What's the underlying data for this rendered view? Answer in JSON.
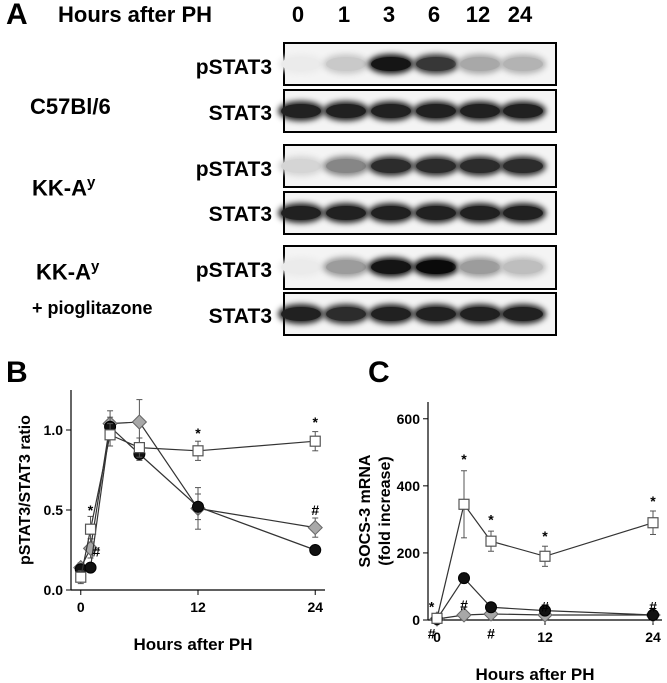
{
  "panel_a": {
    "letter": "A",
    "header_label": "Hours after PH",
    "lanes": [
      "0",
      "1",
      "3",
      "6",
      "12",
      "24"
    ],
    "groups": [
      {
        "name": "C57Bl/6",
        "name_base": "C57Bl/6",
        "name_sup": "",
        "subtitle": "",
        "blots": [
          {
            "label": "pSTAT3",
            "band_intensity": [
              0.0,
              0.15,
              0.95,
              0.8,
              0.3,
              0.25
            ]
          },
          {
            "label": "STAT3",
            "band_intensity": [
              0.9,
              0.9,
              0.9,
              0.9,
              0.9,
              0.9
            ]
          }
        ]
      },
      {
        "name": "KK-Ay",
        "name_base": "KK-A",
        "name_sup": "y",
        "subtitle": "",
        "blots": [
          {
            "label": "pSTAT3",
            "band_intensity": [
              0.1,
              0.45,
              0.85,
              0.85,
              0.85,
              0.85
            ]
          },
          {
            "label": "STAT3",
            "band_intensity": [
              0.9,
              0.9,
              0.9,
              0.9,
              0.9,
              0.9
            ]
          }
        ]
      },
      {
        "name": "KK-Ay + pioglitazone",
        "name_base": "KK-A",
        "name_sup": "y",
        "subtitle": "+ pioglitazone",
        "blots": [
          {
            "label": "pSTAT3",
            "band_intensity": [
              0.0,
              0.35,
              0.95,
              1.0,
              0.35,
              0.2
            ]
          },
          {
            "label": "STAT3",
            "band_intensity": [
              0.9,
              0.85,
              0.9,
              0.9,
              0.9,
              0.9
            ]
          }
        ]
      }
    ]
  },
  "chart_data": [
    {
      "panel": "B",
      "type": "line",
      "title": "",
      "xlabel": "Hours after PH",
      "ylabel": "pSTAT3/STAT3 ratio",
      "xlim": [
        -1,
        25
      ],
      "ylim": [
        0,
        1.25
      ],
      "xticks": [
        0,
        12,
        24
      ],
      "yticks": [
        0.0,
        0.5,
        1.0
      ],
      "ytick_labels": [
        "0.0",
        "0.5",
        "1.0"
      ],
      "grid": false,
      "series": [
        {
          "marker": "open-square",
          "x": [
            0,
            1,
            3,
            6,
            12,
            24
          ],
          "y": [
            0.08,
            0.38,
            0.97,
            0.89,
            0.87,
            0.93
          ],
          "err": [
            0.04,
            0.08,
            0.07,
            0.06,
            0.06,
            0.06
          ]
        },
        {
          "marker": "filled-circle",
          "x": [
            0,
            1,
            3,
            6,
            12,
            24
          ],
          "y": [
            0.13,
            0.14,
            1.02,
            0.85,
            0.52,
            0.25
          ],
          "err": [
            0.03,
            0.03,
            0.06,
            0.04,
            0.08,
            0.03
          ]
        },
        {
          "marker": "grey-diamond",
          "x": [
            0,
            1,
            3,
            6,
            12,
            24
          ],
          "y": [
            0.14,
            0.26,
            1.04,
            1.05,
            0.51,
            0.39
          ],
          "err": [
            0.03,
            0.06,
            0.08,
            0.14,
            0.13,
            0.06
          ]
        }
      ],
      "annotations": [
        {
          "text": "*",
          "x": 1,
          "y": 0.5
        },
        {
          "text": "#",
          "x": 1.6,
          "y": 0.24
        },
        {
          "text": "*",
          "x": 12,
          "y": 0.98
        },
        {
          "text": "*",
          "x": 24,
          "y": 1.05
        },
        {
          "text": "#",
          "x": 24,
          "y": 0.5
        }
      ]
    },
    {
      "panel": "C",
      "type": "line",
      "title": "",
      "xlabel": "Hours after PH",
      "ylabel": "SOCS-3 mRNA (fold increase)",
      "ylabel_lines": [
        "SOCS-3 mRNA",
        "(fold increase)"
      ],
      "xlim": [
        -1,
        25
      ],
      "ylim": [
        0,
        650
      ],
      "xticks": [
        0,
        12,
        24
      ],
      "yticks": [
        0,
        200,
        400,
        600
      ],
      "grid": false,
      "series": [
        {
          "marker": "open-square",
          "x": [
            0,
            3,
            6,
            12,
            24
          ],
          "y": [
            5,
            345,
            235,
            190,
            290
          ],
          "err": [
            3,
            100,
            30,
            30,
            35
          ]
        },
        {
          "marker": "filled-circle",
          "x": [
            0,
            3,
            6,
            12,
            24
          ],
          "y": [
            3,
            125,
            38,
            28,
            15
          ],
          "err": [
            2,
            15,
            6,
            5,
            3
          ]
        },
        {
          "marker": "grey-diamond",
          "x": [
            0,
            3,
            6,
            12,
            24
          ],
          "y": [
            3,
            15,
            18,
            15,
            15
          ],
          "err": [
            2,
            4,
            4,
            3,
            3
          ]
        }
      ],
      "annotations": [
        {
          "text": "*",
          "x": -0.6,
          "y": 40
        },
        {
          "text": "#",
          "x": -0.6,
          "y": -40
        },
        {
          "text": "*",
          "x": 3,
          "y": 480
        },
        {
          "text": "*",
          "x": 6,
          "y": 300
        },
        {
          "text": "*",
          "x": 12,
          "y": 250
        },
        {
          "text": "*",
          "x": 24,
          "y": 355
        },
        {
          "text": "#",
          "x": 3,
          "y": 45
        },
        {
          "text": "#",
          "x": 6,
          "y": -40
        },
        {
          "text": "#",
          "x": 12,
          "y": 40
        },
        {
          "text": "#",
          "x": 24,
          "y": 40
        }
      ]
    }
  ]
}
